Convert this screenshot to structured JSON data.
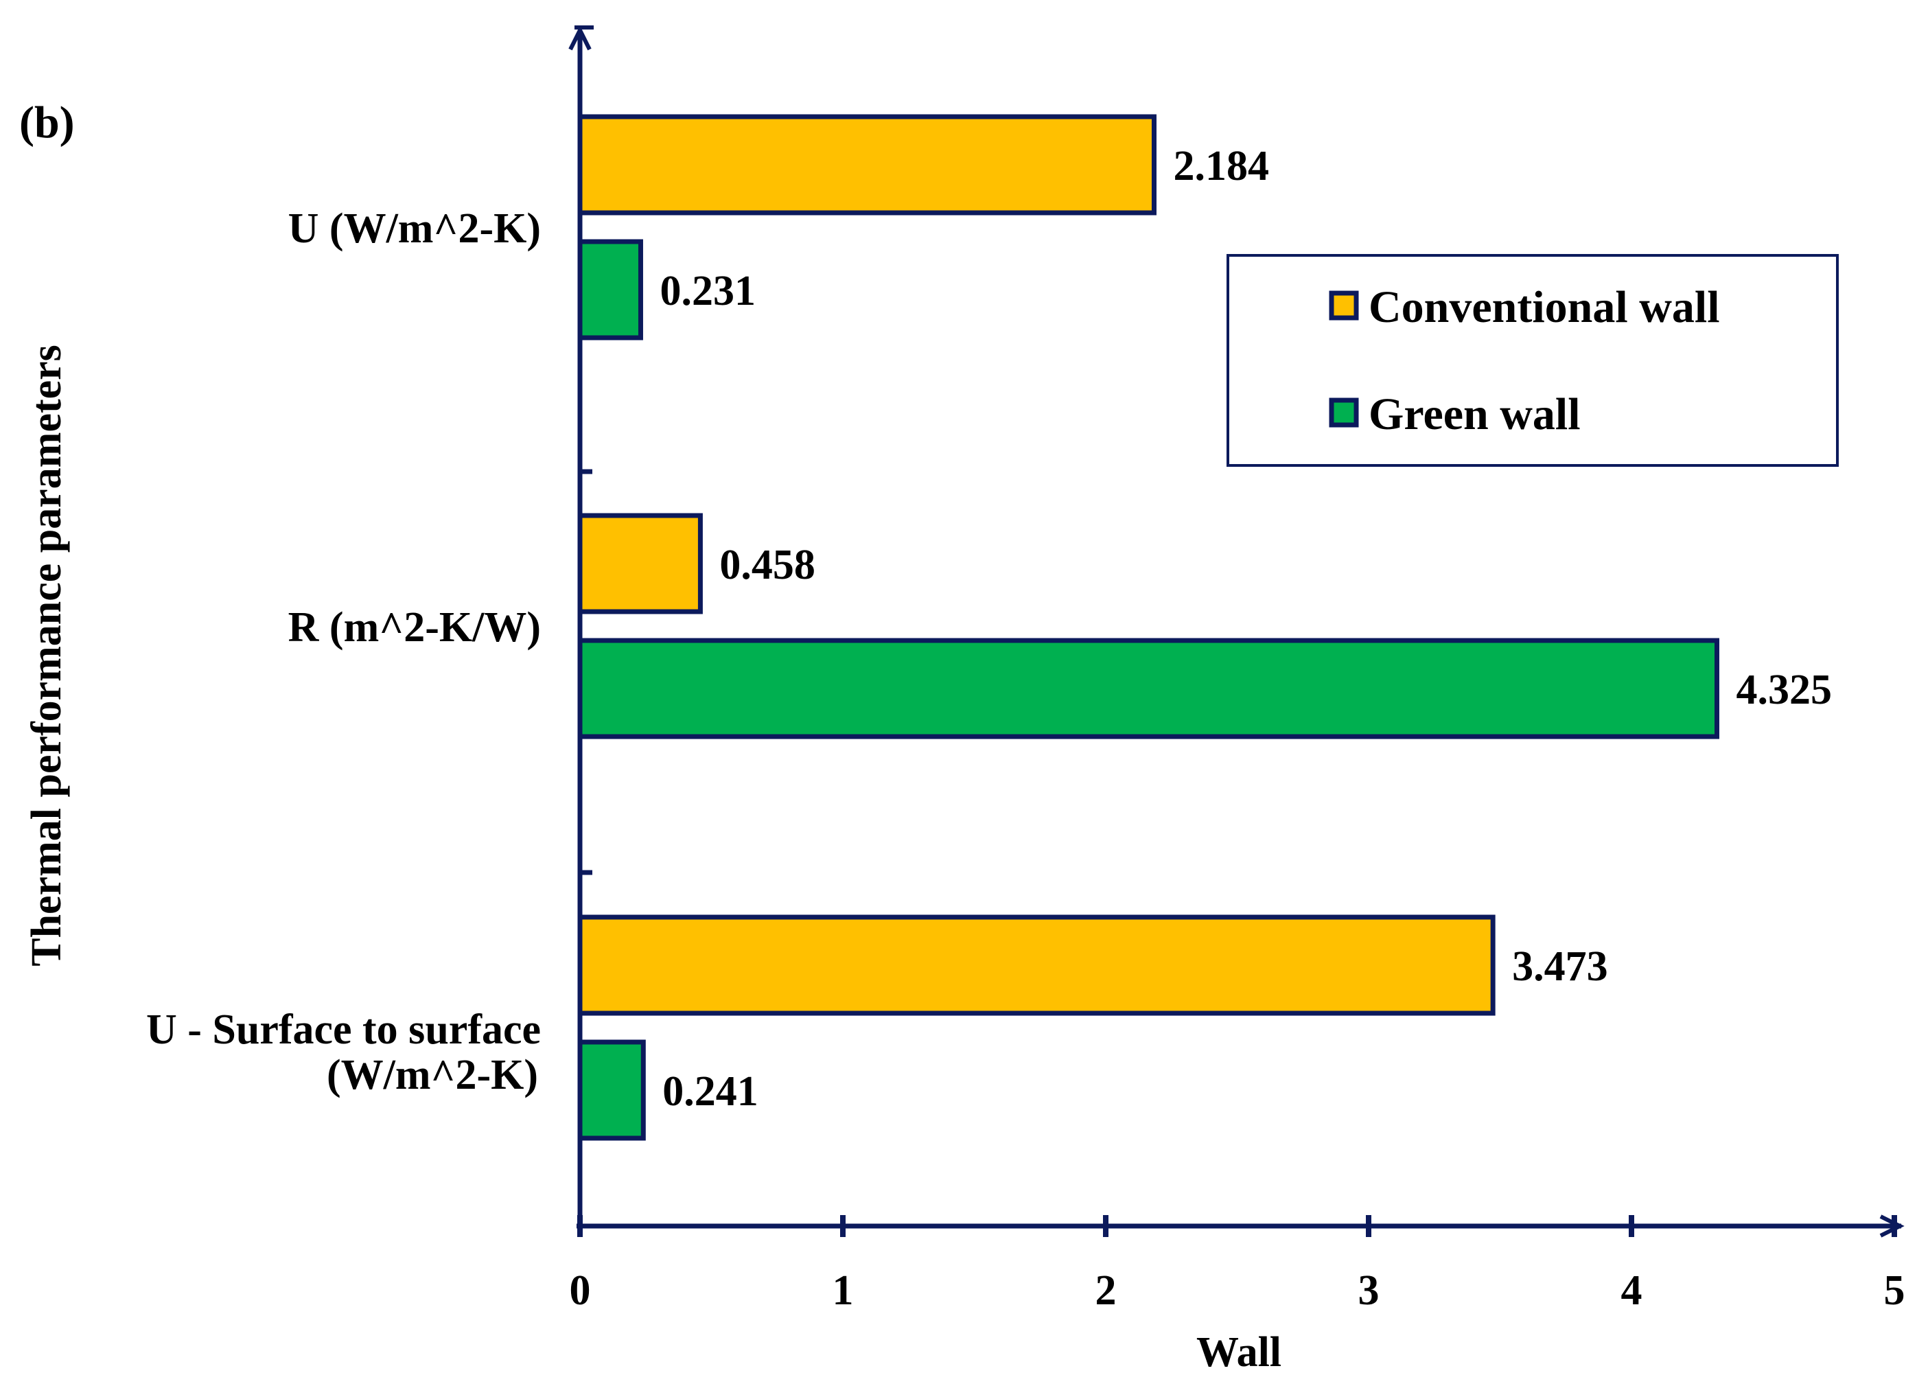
{
  "panel_label": "(b)",
  "colors": {
    "axis": "#0c1a5c",
    "conventional": "#ffc000",
    "green": "#00b050",
    "bar_border": "#0c1a5c",
    "background": "#ffffff"
  },
  "chart_data": {
    "type": "bar",
    "orientation": "horizontal",
    "title": "",
    "xlabel": "Wall",
    "ylabel": "Thermal performance parameters",
    "xlim": [
      0,
      5
    ],
    "xticks": [
      "0",
      "1",
      "2",
      "3",
      "4",
      "5"
    ],
    "categories": [
      [
        "U (W/m^2-K)"
      ],
      [
        "R (m^2-K/W)"
      ],
      [
        "U - Surface to surface",
        "(W/m^2-K)"
      ]
    ],
    "series": [
      {
        "name": "Conventional wall",
        "color": "#ffc000",
        "values": [
          2.184,
          0.458,
          3.473
        ],
        "labels": [
          "2.184",
          "0.458",
          "3.473"
        ]
      },
      {
        "name": "Green wall",
        "color": "#00b050",
        "values": [
          0.231,
          4.325,
          0.241
        ],
        "labels": [
          "0.231",
          "4.325",
          "0.241"
        ]
      }
    ],
    "legend": {
      "position": "top-right",
      "entries": [
        "Conventional wall",
        "Green wall"
      ]
    },
    "grid": false
  }
}
